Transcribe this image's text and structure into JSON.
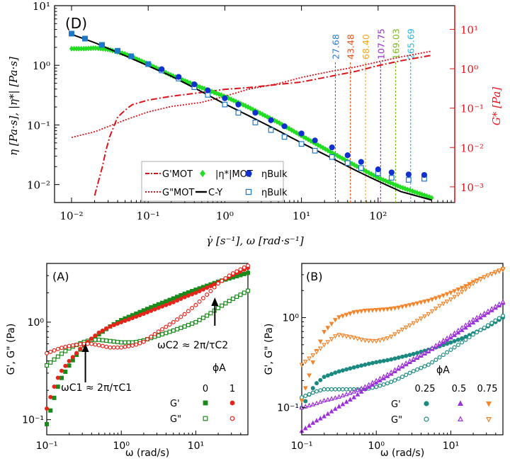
{
  "chart_data": [
    {
      "type": "line",
      "panel_label": "(D)",
      "xlabel": "γ̇ [s⁻¹],  ω [rad·s⁻¹]",
      "ylabel_left": "η [Pa·s],  |η*| [Pa·s]",
      "ylabel_right": "G* [Pa]",
      "xscale": "log",
      "yscale_left": "log",
      "yscale_right": "log",
      "xlim": [
        0.006,
        1000
      ],
      "ylim_left": [
        0.005,
        10
      ],
      "ylim_right": [
        0.0004,
        40
      ],
      "x_ticks": [
        "10⁻²",
        "10⁻¹",
        "10⁰",
        "10¹",
        "10²"
      ],
      "y_ticks_left": [
        "10⁻²",
        "10⁻¹",
        "10⁰",
        "10¹"
      ],
      "y_ticks_right": [
        "10⁻³",
        "10⁻²",
        "10⁻¹",
        "10⁰",
        "10¹"
      ],
      "vlines": [
        {
          "x": 27.68,
          "label": "27.68",
          "color": "#2a7fd0"
        },
        {
          "x": 43.48,
          "label": "43.48",
          "color": "#e8541a"
        },
        {
          "x": 68.4,
          "label": "68.40",
          "color": "#f5a623"
        },
        {
          "x": 107.75,
          "label": "107.75",
          "color": "#9b2fc9"
        },
        {
          "x": 169.03,
          "label": "169.03",
          "color": "#7dbb1f"
        },
        {
          "x": 265.69,
          "label": "265.69",
          "color": "#2ab5e0"
        }
      ],
      "legend": [
        {
          "name": "G'MOT",
          "style": "dashdot",
          "color": "#d9141a"
        },
        {
          "name": "|η*|MOT",
          "style": "diamond",
          "color": "#22dd22"
        },
        {
          "name": "ηBulk",
          "style": "filled-circle",
          "color": "#1030d0"
        },
        {
          "name": "G\"MOT",
          "style": "dotted",
          "color": "#d9141a"
        },
        {
          "name": "C-Y",
          "style": "solid",
          "color": "#000000"
        },
        {
          "name": "ηBulk",
          "style": "open-square",
          "color": "#1e78c8"
        }
      ],
      "series": [
        {
          "name": "C-Y",
          "axis": "left",
          "x": [
            0.01,
            0.02,
            0.05,
            0.1,
            0.2,
            0.5,
            1,
            2,
            5,
            10,
            20,
            50,
            100,
            200,
            500
          ],
          "y": [
            3.3,
            2.4,
            1.45,
            0.98,
            0.66,
            0.36,
            0.225,
            0.145,
            0.08,
            0.05,
            0.032,
            0.0175,
            0.0114,
            0.0076,
            0.0055
          ]
        },
        {
          "name": "|η*|MOT",
          "axis": "left",
          "x": [
            0.01,
            0.015,
            0.02,
            0.03,
            0.05,
            0.1,
            0.2,
            0.5,
            1,
            2,
            5,
            10,
            20,
            50,
            100,
            200,
            500
          ],
          "y": [
            1.9,
            1.9,
            1.95,
            1.85,
            1.55,
            1.05,
            0.68,
            0.42,
            0.3,
            0.2,
            0.11,
            0.066,
            0.04,
            0.021,
            0.013,
            0.009,
            0.006
          ]
        },
        {
          "name": "ηBulk (filled)",
          "axis": "left",
          "x": [
            0.01,
            0.015,
            0.025,
            0.04,
            0.06,
            0.1,
            0.15,
            0.25,
            0.4,
            0.6,
            1,
            1.5,
            2.5,
            4,
            6,
            10,
            15,
            25,
            40,
            60,
            100,
            150,
            250,
            400
          ],
          "y": [
            3.4,
            2.8,
            2.2,
            1.75,
            1.42,
            1.05,
            0.86,
            0.64,
            0.48,
            0.38,
            0.28,
            0.22,
            0.16,
            0.12,
            0.095,
            0.072,
            0.055,
            0.042,
            0.031,
            0.024,
            0.018,
            0.016,
            0.0148,
            0.0145
          ]
        },
        {
          "name": "ηBulk (open)",
          "axis": "left",
          "x": [
            0.01,
            0.015,
            0.025,
            0.04,
            0.06,
            0.1,
            0.15,
            0.25,
            0.4,
            0.6,
            1,
            1.5,
            2.5,
            4,
            6,
            10,
            15,
            25,
            40,
            60,
            100,
            150,
            250,
            400
          ],
          "y": [
            3.4,
            2.8,
            2.2,
            1.75,
            1.42,
            1.05,
            0.82,
            0.6,
            0.43,
            0.32,
            0.22,
            0.16,
            0.11,
            0.082,
            0.063,
            0.048,
            0.037,
            0.029,
            0.023,
            0.019,
            0.0155,
            0.013,
            0.012,
            0.0125
          ]
        },
        {
          "name": "G'MOT",
          "axis": "right",
          "x": [
            0.02,
            0.025,
            0.03,
            0.04,
            0.06,
            0.1,
            0.2,
            0.5,
            1,
            2,
            5,
            10,
            20,
            50,
            100,
            200,
            500
          ],
          "y": [
            0.0006,
            0.003,
            0.015,
            0.06,
            0.12,
            0.16,
            0.2,
            0.25,
            0.3,
            0.33,
            0.4,
            0.46,
            0.6,
            0.85,
            1.2,
            1.6,
            2.2
          ]
        },
        {
          "name": "G\"MOT",
          "axis": "right",
          "x": [
            0.01,
            0.02,
            0.05,
            0.1,
            0.2,
            0.5,
            1,
            2,
            5,
            10,
            20,
            50,
            100,
            200,
            500
          ],
          "y": [
            0.018,
            0.025,
            0.05,
            0.08,
            0.11,
            0.14,
            0.2,
            0.3,
            0.42,
            0.6,
            0.8,
            1.1,
            1.5,
            2.0,
            2.8
          ]
        }
      ]
    },
    {
      "type": "scatter",
      "panel_label": "(A)",
      "xlabel": "ω (rad/s)",
      "ylabel": "G', G\" (Pa)",
      "xscale": "log",
      "yscale": "log",
      "xlim": [
        0.1,
        50
      ],
      "ylim": [
        0.07,
        4
      ],
      "x_ticks": [
        "10⁻¹",
        "10⁰",
        "10¹"
      ],
      "y_ticks": [
        "10⁻¹",
        "10⁰"
      ],
      "annotations": [
        "ωC1 ≈ 2π/τC1",
        "ωC2 ≈ 2π/τC2"
      ],
      "annotation_x": [
        0.33,
        18
      ],
      "legend_title": "ϕA",
      "legend_columns": [
        "0",
        "1"
      ],
      "legend_rows": [
        "G'",
        "G\""
      ],
      "series": [
        {
          "name": "G' ϕA=0",
          "color": "#1a8a1a",
          "marker": "filled-square",
          "x": [
            0.1,
            0.12,
            0.15,
            0.2,
            0.25,
            0.3,
            0.4,
            0.5,
            0.7,
            1,
            1.5,
            2,
            3,
            5,
            7,
            10,
            15,
            20,
            30,
            50
          ],
          "y": [
            0.09,
            0.15,
            0.25,
            0.36,
            0.46,
            0.56,
            0.66,
            0.75,
            0.9,
            1.05,
            1.2,
            1.32,
            1.5,
            1.75,
            1.95,
            2.15,
            2.4,
            2.6,
            2.85,
            3.2
          ]
        },
        {
          "name": "G\" ϕA=0",
          "color": "#1a8a1a",
          "marker": "open-square",
          "x": [
            0.1,
            0.15,
            0.2,
            0.3,
            0.4,
            0.5,
            0.7,
            1,
            1.5,
            2,
            3,
            5,
            7,
            10,
            15,
            20,
            30,
            50
          ],
          "y": [
            0.36,
            0.46,
            0.54,
            0.62,
            0.66,
            0.66,
            0.64,
            0.62,
            0.62,
            0.65,
            0.72,
            0.82,
            0.9,
            1.0,
            1.2,
            1.4,
            1.7,
            2.1
          ]
        },
        {
          "name": "G' ϕA=1",
          "color": "#e8241a",
          "marker": "filled-circle",
          "x": [
            0.1,
            0.12,
            0.15,
            0.2,
            0.25,
            0.3,
            0.4,
            0.5,
            0.7,
            1,
            1.5,
            2,
            3,
            5,
            7,
            10,
            15,
            20,
            30,
            50
          ],
          "y": [
            0.13,
            0.2,
            0.3,
            0.4,
            0.48,
            0.56,
            0.68,
            0.78,
            0.9,
            1.0,
            1.12,
            1.22,
            1.38,
            1.6,
            1.8,
            2.0,
            2.3,
            2.55,
            3.0,
            3.6
          ]
        },
        {
          "name": "G\" ϕA=1",
          "color": "#e8241a",
          "marker": "open-circle",
          "x": [
            0.1,
            0.15,
            0.2,
            0.3,
            0.4,
            0.5,
            0.7,
            1,
            1.5,
            2,
            3,
            5,
            7,
            10,
            15,
            20,
            30,
            50
          ],
          "y": [
            0.48,
            0.54,
            0.57,
            0.6,
            0.6,
            0.58,
            0.55,
            0.55,
            0.58,
            0.63,
            0.78,
            1.0,
            1.2,
            1.5,
            2.0,
            2.5,
            3.1,
            3.8
          ]
        }
      ]
    },
    {
      "type": "scatter",
      "panel_label": "(B)",
      "xlabel": "ω (rad/s)",
      "ylabel": "G', G\" (Pa)",
      "xscale": "log",
      "yscale": "log",
      "xlim": [
        0.1,
        50
      ],
      "ylim": [
        0.05,
        4
      ],
      "x_ticks": [
        "10⁻¹",
        "10⁰",
        "10¹"
      ],
      "y_ticks": [
        "10⁻¹",
        "10⁰"
      ],
      "legend_title": "ϕA",
      "legend_columns": [
        "0.25",
        "0.5",
        "0.75"
      ],
      "legend_rows": [
        "G'",
        "G\""
      ],
      "series": [
        {
          "name": "G' ϕA=0.25",
          "color": "#1a8a80",
          "marker": "filled-circle",
          "x": [
            0.1,
            0.15,
            0.2,
            0.3,
            0.5,
            0.7,
            1,
            1.5,
            2,
            3,
            5,
            7,
            10,
            15,
            20,
            30,
            50
          ],
          "y": [
            0.1,
            0.18,
            0.22,
            0.25,
            0.28,
            0.3,
            0.32,
            0.34,
            0.36,
            0.39,
            0.44,
            0.48,
            0.53,
            0.6,
            0.67,
            0.78,
            1.0
          ]
        },
        {
          "name": "G\" ϕA=0.25",
          "color": "#1a8a80",
          "marker": "open-circle",
          "x": [
            0.1,
            0.15,
            0.2,
            0.3,
            0.5,
            0.7,
            1,
            1.5,
            2,
            3,
            5,
            7,
            10,
            15,
            20,
            30,
            50
          ],
          "y": [
            0.13,
            0.15,
            0.16,
            0.16,
            0.16,
            0.16,
            0.17,
            0.19,
            0.21,
            0.25,
            0.3,
            0.36,
            0.44,
            0.55,
            0.65,
            0.8,
            1.05
          ]
        },
        {
          "name": "G' ϕA=0.5",
          "color": "#9b30d9",
          "marker": "filled-triangle",
          "x": [
            0.1,
            0.15,
            0.2,
            0.3,
            0.5,
            0.7,
            1,
            1.5,
            2,
            3,
            5,
            7,
            10,
            15,
            20,
            30,
            50
          ],
          "y": [
            0.055,
            0.07,
            0.08,
            0.1,
            0.13,
            0.16,
            0.19,
            0.23,
            0.27,
            0.33,
            0.42,
            0.5,
            0.6,
            0.75,
            0.88,
            1.1,
            1.45
          ]
        },
        {
          "name": "G\" ϕA=0.5",
          "color": "#9b30d9",
          "marker": "open-triangle",
          "x": [
            0.1,
            0.15,
            0.2,
            0.3,
            0.5,
            0.7,
            1,
            1.5,
            2,
            3,
            5,
            7,
            10,
            15,
            20,
            30,
            50
          ],
          "y": [
            0.1,
            0.11,
            0.12,
            0.13,
            0.15,
            0.17,
            0.2,
            0.24,
            0.28,
            0.34,
            0.43,
            0.52,
            0.63,
            0.8,
            0.95,
            1.15,
            1.5
          ]
        },
        {
          "name": "G' ϕA=0.75",
          "color": "#f5842a",
          "marker": "filled-triangle-down",
          "x": [
            0.1,
            0.12,
            0.15,
            0.2,
            0.3,
            0.5,
            0.7,
            1,
            1.5,
            2,
            3,
            5,
            7,
            10,
            15,
            20,
            30,
            50
          ],
          "y": [
            0.12,
            0.2,
            0.38,
            0.7,
            1.0,
            1.15,
            1.2,
            1.22,
            1.25,
            1.3,
            1.4,
            1.55,
            1.7,
            1.9,
            2.2,
            2.5,
            2.9,
            3.4
          ]
        },
        {
          "name": "G\" ϕA=0.75",
          "color": "#f5842a",
          "marker": "open-triangle-down",
          "x": [
            0.1,
            0.15,
            0.2,
            0.3,
            0.5,
            0.7,
            1,
            1.5,
            2,
            3,
            5,
            7,
            10,
            15,
            20,
            30,
            50
          ],
          "y": [
            0.3,
            0.4,
            0.5,
            0.65,
            0.6,
            0.56,
            0.55,
            0.6,
            0.7,
            0.85,
            1.1,
            1.35,
            1.6,
            2.0,
            2.4,
            2.9,
            3.5
          ]
        }
      ]
    }
  ]
}
